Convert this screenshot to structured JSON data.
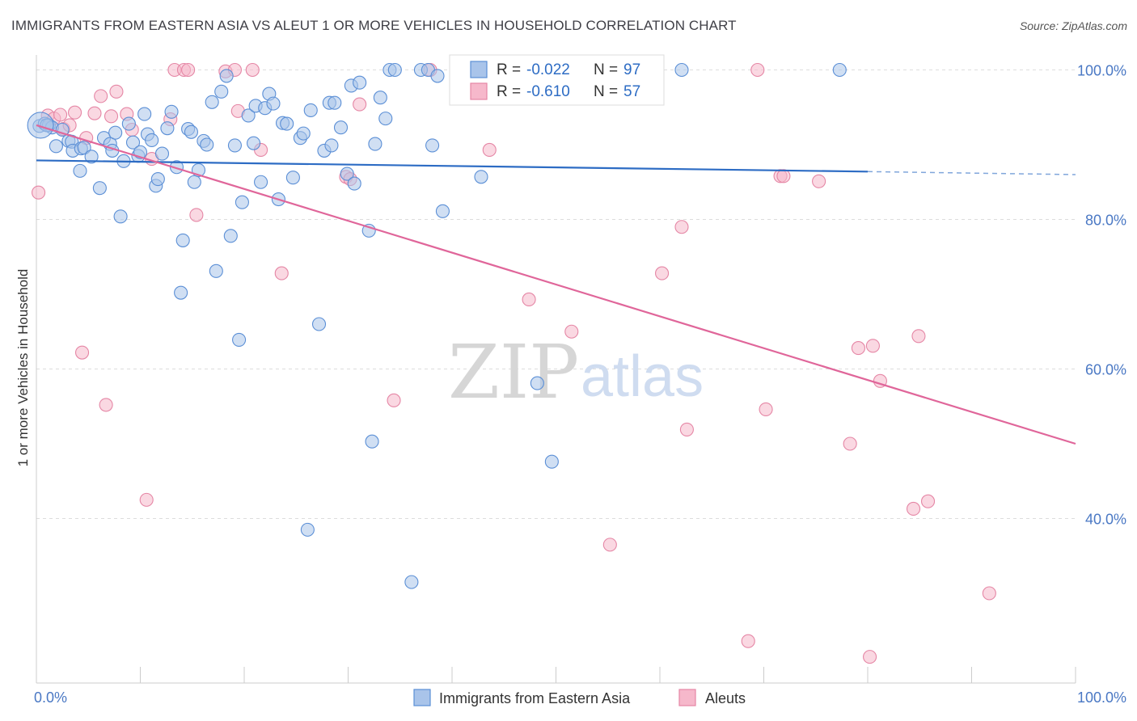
{
  "title": "IMMIGRANTS FROM EASTERN ASIA VS ALEUT 1 OR MORE VEHICLES IN HOUSEHOLD CORRELATION CHART",
  "source": "Source: ZipAtlas.com",
  "watermark": {
    "zip": "ZIP",
    "atlas": "atlas"
  },
  "colors": {
    "blue_fill": "#a9c4ea",
    "blue_stroke": "#5b8fd6",
    "blue_line": "#2d6cc4",
    "pink_fill": "#f6b8cb",
    "pink_stroke": "#e586a5",
    "pink_line": "#e0669a",
    "axis_label": "#4a78c4",
    "grid": "#dddddd"
  },
  "chart_data": {
    "type": "scatter",
    "xlabel": "",
    "ylabel": "1 or more Vehicles in Household",
    "xlim": [
      0,
      100
    ],
    "ylim": [
      18,
      102
    ],
    "x_tick_labels": [
      {
        "value": 0,
        "label": "0.0%"
      },
      {
        "value": 100,
        "label": "100.0%"
      }
    ],
    "y_tick_labels": [
      {
        "value": 100,
        "label": "100.0%"
      },
      {
        "value": 80,
        "label": "80.0%"
      },
      {
        "value": 60,
        "label": "60.0%"
      },
      {
        "value": 40,
        "label": "40.0%"
      }
    ],
    "legend": {
      "position": "top-center",
      "entries": [
        {
          "series": "Immigrants from Eastern Asia",
          "r_label": "R = ",
          "r_value": "-0.022",
          "n_label": "N = ",
          "n_value": "97"
        },
        {
          "series": "Aleuts",
          "r_label": "R = ",
          "r_value": "-0.610",
          "n_label": "N = ",
          "n_value": "57"
        }
      ]
    },
    "series": [
      {
        "name": "Immigrants from Eastern Asia",
        "color": "blue",
        "trend": {
          "x0": 0,
          "y0": 87.9,
          "x1": 80,
          "y1": 86.4,
          "dash_to": 100,
          "dash_y": 86.0
        },
        "points": [
          [
            0.3,
            92.5
          ],
          [
            0.8,
            92.8
          ],
          [
            1.2,
            92.6
          ],
          [
            1.5,
            92.3
          ],
          [
            1.9,
            89.8
          ],
          [
            2.5,
            92.0
          ],
          [
            3.1,
            90.5
          ],
          [
            3.4,
            90.4
          ],
          [
            3.5,
            89.2
          ],
          [
            4.2,
            86.5
          ],
          [
            4.3,
            89.5
          ],
          [
            4.6,
            89.6
          ],
          [
            5.3,
            88.4
          ],
          [
            6.1,
            84.2
          ],
          [
            6.5,
            90.9
          ],
          [
            7.1,
            90.1
          ],
          [
            7.3,
            89.2
          ],
          [
            7.6,
            91.6
          ],
          [
            8.1,
            80.4
          ],
          [
            8.4,
            87.8
          ],
          [
            8.9,
            92.8
          ],
          [
            9.3,
            90.3
          ],
          [
            9.8,
            88.5
          ],
          [
            10.0,
            89.0
          ],
          [
            10.4,
            94.1
          ],
          [
            10.7,
            91.4
          ],
          [
            11.1,
            90.6
          ],
          [
            11.5,
            84.5
          ],
          [
            11.7,
            85.4
          ],
          [
            12.1,
            88.8
          ],
          [
            12.6,
            92.2
          ],
          [
            13.0,
            94.4
          ],
          [
            13.5,
            87.0
          ],
          [
            13.9,
            70.2
          ],
          [
            14.1,
            77.2
          ],
          [
            14.6,
            92.1
          ],
          [
            14.9,
            91.7
          ],
          [
            15.2,
            85.0
          ],
          [
            15.6,
            86.6
          ],
          [
            16.1,
            90.5
          ],
          [
            16.4,
            90.0
          ],
          [
            16.9,
            95.7
          ],
          [
            17.3,
            73.1
          ],
          [
            17.8,
            97.1
          ],
          [
            18.3,
            99.2
          ],
          [
            18.7,
            77.8
          ],
          [
            19.1,
            89.9
          ],
          [
            19.5,
            63.9
          ],
          [
            19.8,
            82.3
          ],
          [
            20.4,
            93.9
          ],
          [
            20.9,
            90.2
          ],
          [
            21.1,
            95.2
          ],
          [
            21.6,
            85.0
          ],
          [
            22.0,
            94.9
          ],
          [
            22.4,
            96.8
          ],
          [
            22.8,
            95.5
          ],
          [
            23.3,
            82.7
          ],
          [
            23.7,
            92.9
          ],
          [
            24.1,
            92.8
          ],
          [
            24.7,
            85.6
          ],
          [
            25.4,
            90.9
          ],
          [
            25.7,
            91.5
          ],
          [
            26.1,
            38.5
          ],
          [
            26.4,
            94.6
          ],
          [
            27.2,
            66.0
          ],
          [
            27.7,
            89.2
          ],
          [
            28.2,
            95.6
          ],
          [
            28.4,
            89.9
          ],
          [
            28.7,
            95.6
          ],
          [
            29.3,
            92.3
          ],
          [
            29.9,
            86.1
          ],
          [
            30.3,
            97.9
          ],
          [
            30.6,
            84.8
          ],
          [
            31.1,
            98.3
          ],
          [
            32.0,
            78.5
          ],
          [
            32.3,
            50.3
          ],
          [
            32.6,
            90.1
          ],
          [
            33.1,
            96.3
          ],
          [
            33.6,
            93.5
          ],
          [
            34.0,
            100.0
          ],
          [
            34.5,
            100.0
          ],
          [
            36.1,
            31.5
          ],
          [
            37.0,
            100.0
          ],
          [
            37.7,
            100.0
          ],
          [
            38.1,
            89.9
          ],
          [
            38.6,
            99.2
          ],
          [
            39.1,
            81.1
          ],
          [
            41.2,
            100.0
          ],
          [
            42.8,
            85.7
          ],
          [
            45.0,
            100.0
          ],
          [
            48.2,
            58.1
          ],
          [
            49.6,
            47.6
          ],
          [
            51.4,
            100.0
          ],
          [
            58.9,
            100.0
          ],
          [
            62.1,
            100.0
          ],
          [
            77.3,
            100.0
          ],
          [
            1.0,
            92.6
          ]
        ]
      },
      {
        "name": "Aleuts",
        "color": "pink",
        "trend": {
          "x0": 0,
          "y0": 92.6,
          "x1": 100,
          "y1": 50.0
        },
        "points": [
          [
            0.2,
            83.6
          ],
          [
            1.1,
            93.9
          ],
          [
            1.7,
            93.5
          ],
          [
            2.3,
            94.0
          ],
          [
            2.6,
            92.1
          ],
          [
            3.2,
            92.6
          ],
          [
            3.7,
            94.3
          ],
          [
            4.4,
            62.2
          ],
          [
            4.8,
            90.9
          ],
          [
            5.6,
            94.2
          ],
          [
            6.2,
            96.5
          ],
          [
            6.7,
            55.2
          ],
          [
            7.2,
            93.8
          ],
          [
            7.7,
            97.1
          ],
          [
            8.7,
            94.1
          ],
          [
            9.2,
            92.0
          ],
          [
            10.6,
            42.5
          ],
          [
            11.1,
            88.1
          ],
          [
            12.9,
            93.4
          ],
          [
            13.3,
            100.0
          ],
          [
            14.2,
            100.0
          ],
          [
            14.6,
            100.0
          ],
          [
            15.4,
            80.6
          ],
          [
            18.2,
            99.8
          ],
          [
            19.1,
            100.0
          ],
          [
            19.4,
            94.5
          ],
          [
            20.8,
            100.0
          ],
          [
            21.6,
            89.3
          ],
          [
            23.6,
            72.8
          ],
          [
            29.8,
            85.7
          ],
          [
            30.2,
            85.4
          ],
          [
            31.1,
            95.4
          ],
          [
            34.4,
            55.8
          ],
          [
            37.9,
            100.0
          ],
          [
            43.6,
            89.3
          ],
          [
            47.4,
            69.3
          ],
          [
            51.5,
            65.0
          ],
          [
            55.2,
            36.5
          ],
          [
            57.8,
            100.0
          ],
          [
            60.2,
            72.8
          ],
          [
            62.1,
            79.0
          ],
          [
            62.6,
            51.9
          ],
          [
            68.5,
            23.6
          ],
          [
            69.4,
            100.0
          ],
          [
            70.2,
            54.6
          ],
          [
            71.6,
            85.8
          ],
          [
            71.9,
            85.8
          ],
          [
            75.3,
            85.1
          ],
          [
            78.3,
            50.0
          ],
          [
            79.1,
            62.8
          ],
          [
            80.2,
            21.5
          ],
          [
            80.5,
            63.1
          ],
          [
            81.2,
            58.4
          ],
          [
            84.4,
            41.3
          ],
          [
            84.9,
            64.4
          ],
          [
            85.8,
            42.3
          ],
          [
            91.7,
            30.0
          ]
        ]
      }
    ]
  }
}
